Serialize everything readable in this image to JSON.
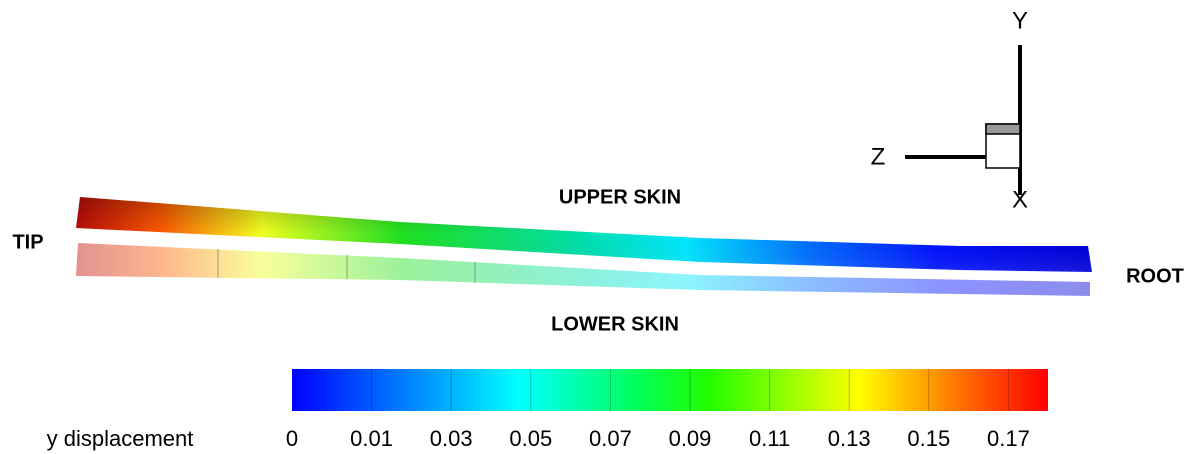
{
  "labels": {
    "tip": "TIP",
    "root": "ROOT",
    "upper": "UPPER SKIN",
    "lower": "LOWER SKIN"
  },
  "axes": {
    "y": "Y",
    "z": "Z",
    "x": "X"
  },
  "colorbar": {
    "label": "y displacement",
    "ticks": [
      "0",
      "0.01",
      "0.03",
      "0.05",
      "0.07",
      "0.09",
      "0.11",
      "0.13",
      "0.15",
      "0.17"
    ]
  }
}
